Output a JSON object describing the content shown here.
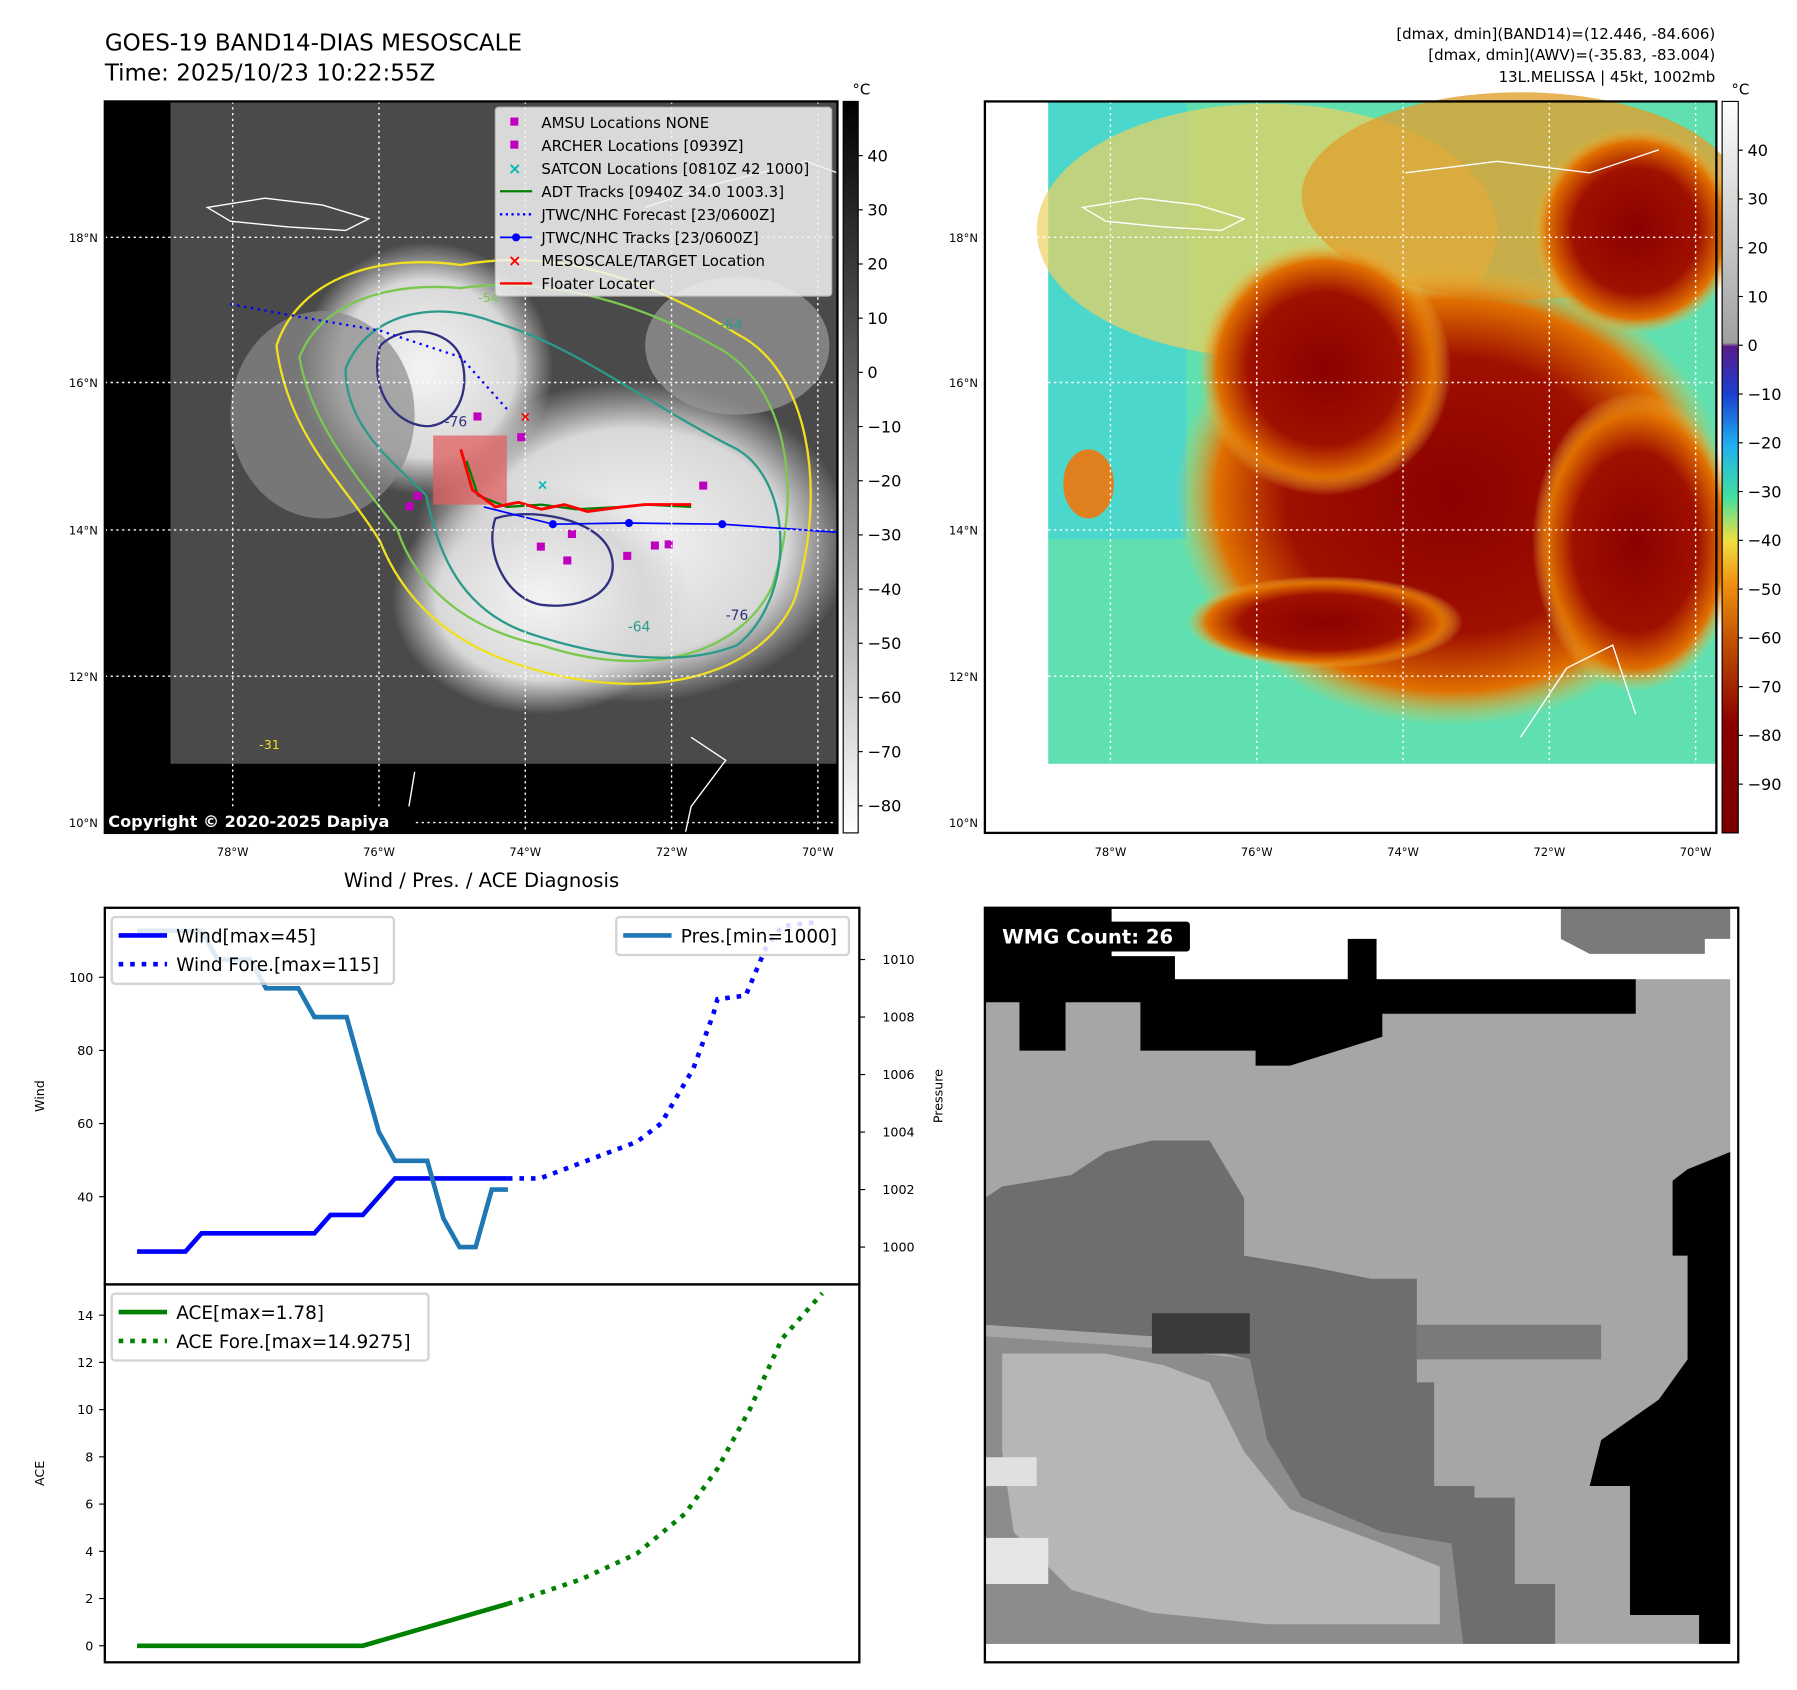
{
  "header": {
    "title_line1": "GOES-19 BAND14-DIAS MESOSCALE",
    "title_line2": "Time: 2025/10/23 10:22:55Z",
    "stats_line1": "[dmax, dmin](BAND14)=(12.446, -84.606)",
    "stats_line2": "[dmax, dmin](AWV)=(-35.83, -83.004)",
    "stats_line3": "13L.MELISSA | 45kt, 1002mb"
  },
  "map_left": {
    "lon_ticks": [
      "78°W",
      "76°W",
      "74°W",
      "72°W",
      "70°W"
    ],
    "lat_ticks": [
      "18°N",
      "16°N",
      "14°N",
      "12°N",
      "10°N"
    ],
    "copyright": "Copyright © 2020-2025 Dapiya",
    "contour_labels": [
      "-64",
      "-76",
      "-31",
      "-54"
    ],
    "colorbar": {
      "unit": "°C",
      "ticks": [
        "40",
        "30",
        "20",
        "10",
        "0",
        "−10",
        "−20",
        "−30",
        "−40",
        "−50",
        "−60",
        "−70",
        "−80"
      ],
      "values": [
        40,
        30,
        20,
        10,
        0,
        -10,
        -20,
        -30,
        -40,
        -50,
        -60,
        -70,
        -80
      ],
      "range": [
        -85,
        50
      ]
    },
    "legend": [
      {
        "label": "AMSU Locations NONE",
        "marker": "square",
        "color": "#c000c0"
      },
      {
        "label": "ARCHER Locations [0939Z]",
        "marker": "square",
        "color": "#c000c0"
      },
      {
        "label": "SATCON Locations [0810Z 42 1000]",
        "marker": "x",
        "color": "#00b8b8"
      },
      {
        "label": "ADT Tracks [0940Z 34.0 1003.3]",
        "marker": "line",
        "color": "#008000"
      },
      {
        "label": "JTWC/NHC Forecast [23/0600Z]",
        "marker": "dotted",
        "color": "#0000ff"
      },
      {
        "label": "JTWC/NHC Tracks [23/0600Z]",
        "marker": "line-dot",
        "color": "#0000ff"
      },
      {
        "label": "MESOSCALE/TARGET Location",
        "marker": "x",
        "color": "#ff0000"
      },
      {
        "label": "Floater Locater",
        "marker": "line",
        "color": "#ff0000"
      }
    ]
  },
  "map_right": {
    "lon_ticks": [
      "78°W",
      "76°W",
      "74°W",
      "72°W",
      "70°W"
    ],
    "lat_ticks": [
      "18°N",
      "16°N",
      "14°N",
      "12°N",
      "10°N"
    ],
    "colorbar": {
      "unit": "°C",
      "ticks": [
        "40",
        "30",
        "20",
        "10",
        "0",
        "−10",
        "−20",
        "−30",
        "−40",
        "−50",
        "−60",
        "−70",
        "−80",
        "−90"
      ],
      "values": [
        40,
        30,
        20,
        10,
        0,
        -10,
        -20,
        -30,
        -40,
        -50,
        -60,
        -70,
        -80,
        -90
      ],
      "range": [
        -100,
        50
      ]
    }
  },
  "wmg": {
    "label": "WMG Count: 26"
  },
  "chart_data": [
    {
      "type": "line",
      "title": "Wind / Pres. / ACE Diagnosis",
      "ylabel": "Wind",
      "y2label": "Pressure",
      "xlim": [
        -4,
        89.6
      ],
      "ylim": [
        16,
        119
      ],
      "y2lim": [
        998.7,
        1011.8
      ],
      "yticks": [
        40,
        60,
        80,
        100
      ],
      "y2ticks": [
        1000,
        1002,
        1004,
        1006,
        1008,
        1010
      ],
      "series": [
        {
          "name": "Wind[max=45]",
          "color": "#0000ff",
          "style": "solid",
          "x": [
            0,
            6,
            8,
            22,
            24,
            28,
            32,
            46
          ],
          "y": [
            25,
            25,
            30,
            30,
            35,
            35,
            45,
            45
          ]
        },
        {
          "name": "Wind Fore.[max=115]",
          "color": "#0000ff",
          "style": "dotted",
          "x": [
            46,
            50,
            56,
            62,
            65,
            69,
            71.5,
            72,
            75.5,
            78,
            80,
            84
          ],
          "y": [
            45,
            45,
            50,
            55,
            60,
            75,
            90,
            94,
            95,
            108,
            114,
            115
          ]
        },
        {
          "name": "Pres.[min=1000]",
          "color": "#1f77b4",
          "style": "solid",
          "axis": "right",
          "x": [
            0,
            8,
            10,
            14,
            16,
            20,
            22,
            26,
            30,
            32,
            36,
            38,
            40,
            42,
            44,
            46
          ],
          "y": [
            1011,
            1011,
            1010,
            1010,
            1009,
            1009,
            1008,
            1008,
            1004,
            1003,
            1003,
            1001,
            1000,
            1000,
            1002,
            1002
          ]
        }
      ]
    },
    {
      "type": "line",
      "ylabel": "ACE",
      "xlim": [
        -4,
        89.6
      ],
      "ylim": [
        -0.7,
        15.3
      ],
      "yticks": [
        0,
        2,
        4,
        6,
        8,
        10,
        12,
        14
      ],
      "series": [
        {
          "name": "ACE[max=1.78]",
          "color": "#008000",
          "style": "solid",
          "x": [
            0,
            28,
            46
          ],
          "y": [
            0,
            0,
            1.78
          ]
        },
        {
          "name": "ACE Fore.[max=14.9275]",
          "color": "#008000",
          "style": "dotted",
          "x": [
            46,
            55,
            62,
            68,
            72,
            76,
            80,
            85
          ],
          "y": [
            1.78,
            2.8,
            3.9,
            5.6,
            7.5,
            10,
            13,
            14.93
          ]
        }
      ]
    }
  ]
}
